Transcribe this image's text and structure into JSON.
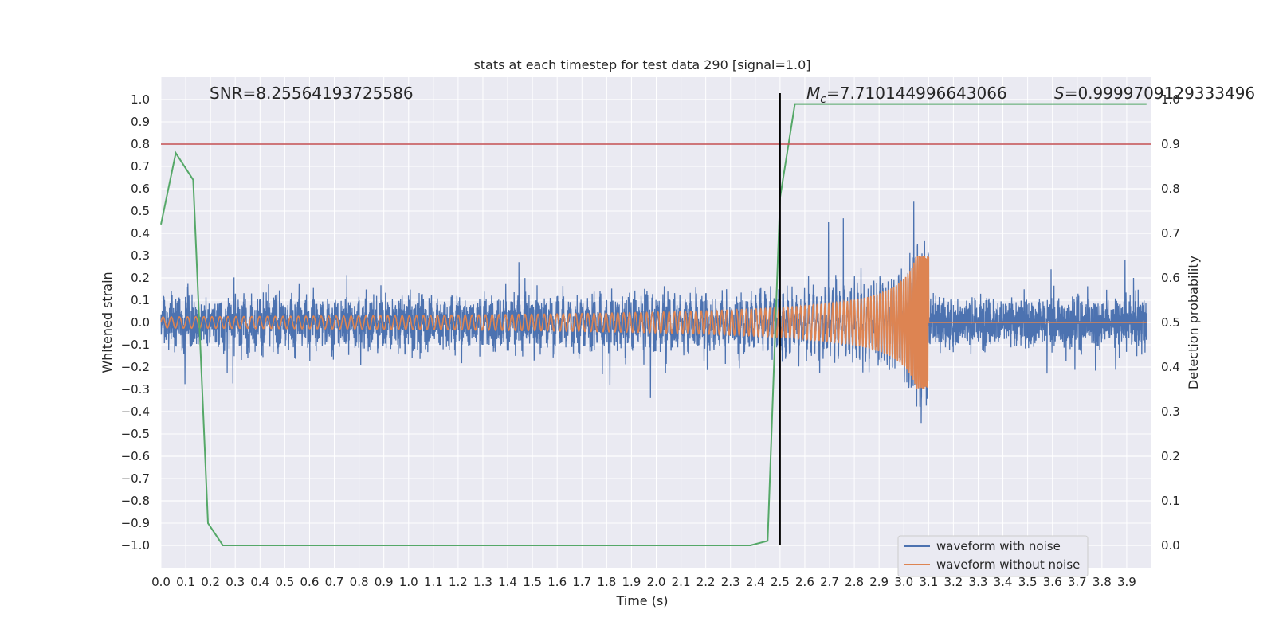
{
  "chart_data": {
    "type": "line",
    "title": "stats at each timestep for test data 290 [signal=1.0]",
    "xlabel": "Time (s)",
    "ylabel": "Whitened strain",
    "y2label": "Detection probability",
    "xlim": [
      0.0,
      4.0
    ],
    "ylim": [
      -1.1,
      1.1
    ],
    "y2lim": [
      -0.05,
      1.05
    ],
    "xticks": [
      "0.0",
      "0.1",
      "0.2",
      "0.3",
      "0.4",
      "0.5",
      "0.6",
      "0.7",
      "0.8",
      "0.9",
      "1.0",
      "1.1",
      "1.2",
      "1.3",
      "1.4",
      "1.5",
      "1.6",
      "1.7",
      "1.8",
      "1.9",
      "2.0",
      "2.1",
      "2.2",
      "2.3",
      "2.4",
      "2.5",
      "2.6",
      "2.7",
      "2.8",
      "2.9",
      "3.0",
      "3.1",
      "3.2",
      "3.3",
      "3.4",
      "3.5",
      "3.6",
      "3.7",
      "3.8",
      "3.9"
    ],
    "yticks": [
      "1.0",
      "0.9",
      "0.8",
      "0.7",
      "0.6",
      "0.5",
      "0.4",
      "0.3",
      "0.2",
      "0.1",
      "0.0",
      "−0.1",
      "−0.2",
      "−0.3",
      "−0.4",
      "−0.5",
      "−0.6",
      "−0.7",
      "−0.8",
      "−0.9",
      "−1.0"
    ],
    "y2ticks": [
      "1.0",
      "0.9",
      "0.8",
      "0.7",
      "0.6",
      "0.5",
      "0.4",
      "0.3",
      "0.2",
      "0.1",
      "0.0"
    ],
    "grid": true,
    "legend_position": "lower right",
    "series": [
      {
        "name": "waveform with noise",
        "color": "#4c72b0",
        "axis": "left",
        "description_values": "dense noisy strain roughly within -1.0 to 1.0"
      },
      {
        "name": "waveform without noise",
        "color": "#dd8452",
        "axis": "left",
        "chirp_end_time": 3.1,
        "peak_amplitude": 0.3
      },
      {
        "name": "",
        "color": "#55a868",
        "axis": "right",
        "x": [
          0.0,
          0.06,
          0.13,
          0.19,
          0.25,
          0.5,
          1.0,
          1.5,
          2.0,
          2.38,
          2.45,
          2.5,
          2.56,
          3.0,
          3.5,
          3.98
        ],
        "y": [
          0.72,
          0.88,
          0.82,
          0.05,
          0.0,
          0.0,
          0.0,
          0.0,
          0.0,
          0.0,
          0.01,
          0.78,
          0.99,
          0.99,
          0.99,
          0.99
        ]
      }
    ],
    "hlines": [
      {
        "y2": 0.9,
        "color": "#c44e52"
      }
    ],
    "vlines": [
      {
        "x": 2.5,
        "color": "#000000"
      }
    ],
    "annotations": {
      "snr": "SNR=8.25564193725586",
      "mc_symbol": "M",
      "mc_sub": "c",
      "mc_value": "=7.710144996643066",
      "s_symbol": "S",
      "s_value": "=0.9999709129333496"
    }
  },
  "colors": {
    "background": "#eaeaf2",
    "grid": "#ffffff",
    "noisy": "#4c72b0",
    "clean": "#dd8452",
    "prob": "#55a868",
    "threshold": "#c44e52"
  }
}
